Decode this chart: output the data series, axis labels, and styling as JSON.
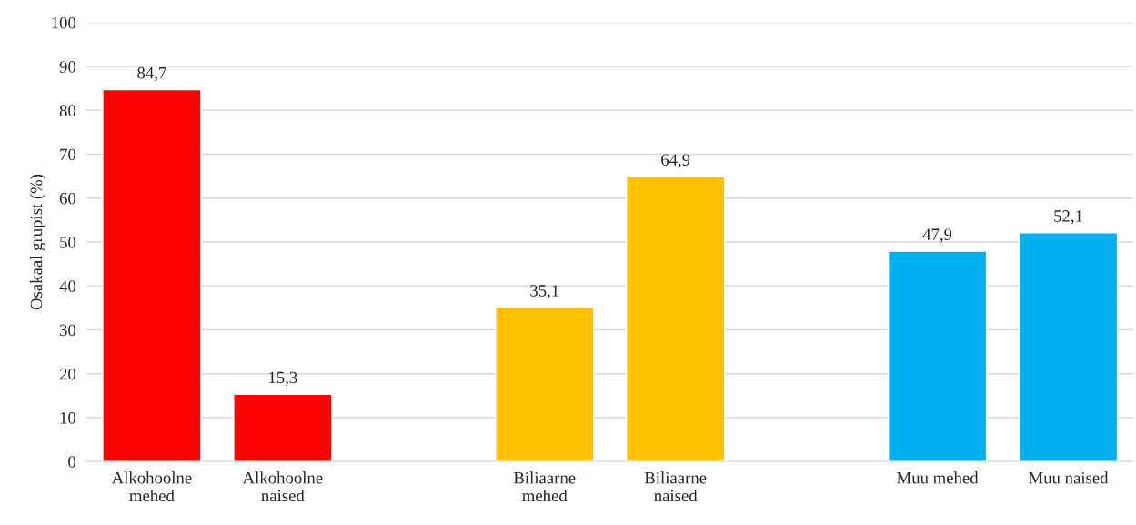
{
  "chart_data": {
    "type": "bar",
    "ylabel": "Osakaal grupist (%)",
    "categories": [
      "Alkohoolne\nmehed",
      "Alkohoolne\nnaised",
      null,
      "Biliaarne\nmehed",
      "Biliaarne\nnaised",
      null,
      "Muu mehed",
      "Muu naised"
    ],
    "values": [
      84.7,
      15.3,
      null,
      35.1,
      64.9,
      null,
      47.9,
      52.1
    ],
    "value_labels": [
      "84,7",
      "15,3",
      null,
      "35,1",
      "64,9",
      null,
      "47,9",
      "52,1"
    ],
    "colors": [
      "#ff0000",
      "#ff0000",
      null,
      "#ffc000",
      "#ffc000",
      null,
      "#00b0f0",
      "#00b0f0"
    ],
    "ylim": [
      0,
      100
    ],
    "yticks": [
      0,
      10,
      20,
      30,
      40,
      50,
      60,
      70,
      80,
      90,
      100
    ],
    "grid": "y",
    "legend": false
  }
}
